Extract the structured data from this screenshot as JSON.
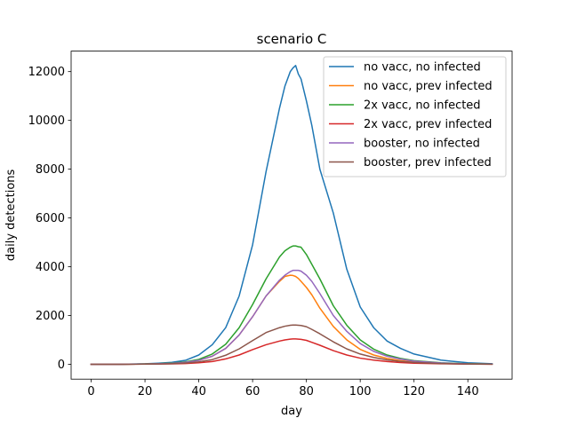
{
  "chart_data": {
    "type": "line",
    "title": "scenario C",
    "xlabel": "day",
    "ylabel": "daily detections",
    "xlim": [
      -7.45,
      156.45
    ],
    "ylim": [
      -610,
      12840
    ],
    "x_ticks": [
      0,
      20,
      40,
      60,
      80,
      100,
      120,
      140
    ],
    "y_ticks": [
      0,
      2000,
      4000,
      6000,
      8000,
      10000,
      12000
    ],
    "grid": false,
    "legend_position": "top-right",
    "x": [
      0,
      10,
      20,
      25,
      30,
      35,
      40,
      45,
      50,
      55,
      60,
      65,
      70,
      72,
      74,
      75,
      76,
      77,
      78,
      80,
      82,
      85,
      90,
      95,
      100,
      105,
      110,
      115,
      120,
      130,
      140,
      149
    ],
    "series": [
      {
        "name": "no vacc, no infected",
        "color": "#1f77b4",
        "values": [
          0,
          0,
          20,
          45,
          80,
          160,
          380,
          800,
          1500,
          2800,
          4900,
          7900,
          10500,
          11400,
          12000,
          12150,
          12250,
          11900,
          11700,
          10800,
          9800,
          8000,
          6200,
          3900,
          2350,
          1500,
          950,
          650,
          420,
          170,
          60,
          20
        ]
      },
      {
        "name": "no vacc, prev infected",
        "color": "#ff7f0e",
        "values": [
          0,
          0,
          10,
          20,
          40,
          80,
          160,
          330,
          650,
          1200,
          1950,
          2800,
          3400,
          3600,
          3650,
          3640,
          3600,
          3520,
          3400,
          3150,
          2850,
          2300,
          1550,
          1000,
          610,
          380,
          240,
          150,
          95,
          40,
          15,
          5
        ]
      },
      {
        "name": "2x vacc, no infected",
        "color": "#2ca02c",
        "values": [
          0,
          0,
          10,
          25,
          50,
          100,
          200,
          420,
          820,
          1500,
          2450,
          3500,
          4400,
          4650,
          4800,
          4850,
          4850,
          4820,
          4800,
          4500,
          4100,
          3500,
          2400,
          1600,
          1000,
          620,
          380,
          240,
          150,
          60,
          20,
          5
        ]
      },
      {
        "name": "2x vacc, prev infected",
        "color": "#d62728",
        "values": [
          0,
          0,
          5,
          10,
          15,
          30,
          60,
          110,
          220,
          380,
          600,
          800,
          950,
          1000,
          1030,
          1040,
          1040,
          1030,
          1020,
          980,
          900,
          780,
          560,
          380,
          250,
          170,
          110,
          70,
          45,
          20,
          8,
          2
        ]
      },
      {
        "name": "booster, no infected",
        "color": "#9467bd",
        "values": [
          0,
          0,
          10,
          20,
          40,
          80,
          160,
          330,
          650,
          1200,
          1950,
          2800,
          3450,
          3650,
          3800,
          3850,
          3850,
          3850,
          3820,
          3650,
          3400,
          2900,
          2000,
          1350,
          850,
          530,
          330,
          210,
          130,
          50,
          15,
          5
        ]
      },
      {
        "name": "booster, prev infected",
        "color": "#8c564b",
        "values": [
          0,
          0,
          5,
          10,
          25,
          50,
          100,
          190,
          370,
          630,
          970,
          1300,
          1500,
          1560,
          1600,
          1610,
          1610,
          1600,
          1590,
          1540,
          1430,
          1250,
          920,
          630,
          420,
          280,
          180,
          115,
          75,
          30,
          10,
          3
        ]
      }
    ]
  }
}
